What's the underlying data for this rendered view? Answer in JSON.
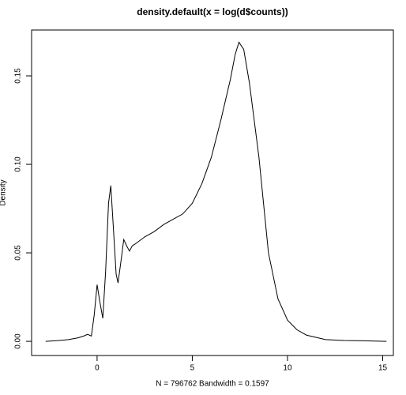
{
  "chart_data": {
    "type": "line",
    "title": "density.default(x = log(d$counts))",
    "x_label": "N = 796762   Bandwidth = 0.1597",
    "y_label": "Density",
    "x": [
      -2.7,
      -2,
      -1.5,
      -1,
      -0.7,
      -0.5,
      -0.3,
      -0.15,
      0,
      0.15,
      0.3,
      0.45,
      0.6,
      0.72,
      0.85,
      1.0,
      1.1,
      1.25,
      1.4,
      1.55,
      1.7,
      1.85,
      2.0,
      2.5,
      3,
      3.5,
      4,
      4.5,
      5,
      5.5,
      6,
      6.5,
      7,
      7.25,
      7.45,
      7.7,
      8,
      8.5,
      9,
      9.5,
      10,
      10.5,
      11,
      12,
      13,
      14,
      15.2
    ],
    "series": [
      {
        "color": "#000000",
        "values": [
          0,
          0.0005,
          0.001,
          0.002,
          0.003,
          0.004,
          0.003,
          0.015,
          0.032,
          0.022,
          0.013,
          0.04,
          0.078,
          0.088,
          0.065,
          0.038,
          0.033,
          0.045,
          0.0575,
          0.054,
          0.051,
          0.054,
          0.055,
          0.059,
          0.062,
          0.066,
          0.069,
          0.072,
          0.078,
          0.089,
          0.104,
          0.125,
          0.148,
          0.162,
          0.169,
          0.165,
          0.146,
          0.104,
          0.05,
          0.024,
          0.012,
          0.0065,
          0.0035,
          0.001,
          0.0005,
          0.0003,
          0
        ]
      }
    ],
    "xlim": [
      -3.44,
      15.56
    ],
    "ylim": [
      -0.008,
      0.1759
    ],
    "xticks": [
      0,
      5,
      10,
      15
    ],
    "yticks": [
      {
        "value": 0,
        "label": "0.00"
      },
      {
        "value": 0.05,
        "label": "0.05"
      },
      {
        "value": 0.1,
        "label": "0.10"
      },
      {
        "value": 0.15,
        "label": "0.15"
      }
    ]
  }
}
